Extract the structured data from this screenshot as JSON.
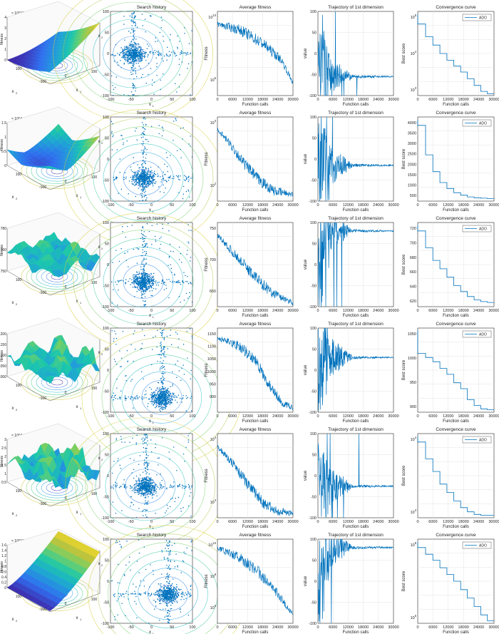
{
  "figure": {
    "column_titles": [
      "",
      "Search history",
      "Average fitness",
      "Trajectory of 1st dimension",
      "Convergence curve"
    ],
    "legend_label": "ADO",
    "line_color": "#0072BD",
    "surface_colors": [
      "#3E26A8",
      "#2F6FF0",
      "#1FA2D6",
      "#1AC7AC",
      "#74CF66",
      "#C6C236",
      "#F9E12B"
    ]
  },
  "chart_data": [
    {
      "function": "F1",
      "surface": {
        "type": "surface",
        "title": "F1",
        "zlabel": "fitness",
        "z_exponent": "× 10^13",
        "zticks": [
          "0",
          "1",
          "2",
          "3",
          "4"
        ],
        "xlabel": "x1",
        "ylabel": "x2",
        "xticks": [
          "-100",
          "0",
          "100"
        ],
        "yticks": [
          "100",
          "0",
          "-100"
        ]
      },
      "search_history": {
        "type": "scatter",
        "title": "Search history",
        "xlabel": "x1",
        "ylabel": "x2",
        "xlim": [
          -100,
          100
        ],
        "ylim": [
          -100,
          100
        ],
        "xticks": [
          "-100",
          "-50",
          "0",
          "50",
          "100"
        ],
        "yticks": [
          "100",
          "50",
          "0",
          "-50",
          "-100"
        ],
        "cluster_center": [
          -45,
          0
        ]
      },
      "average_fitness": {
        "type": "line",
        "title": "Average fitness",
        "xlabel": "Function calls",
        "ylabel": "Fitness",
        "scale": "log",
        "xlim": [
          0,
          30000
        ],
        "xticks": [
          "0",
          "6000",
          "12000",
          "18000",
          "24000",
          "30000"
        ],
        "yticks": [
          "10^10",
          "10^5"
        ],
        "trend": [
          [
            0,
            0.85
          ],
          [
            0.3,
            0.78
          ],
          [
            0.6,
            0.62
          ],
          [
            0.85,
            0.42
          ],
          [
            1,
            0.15
          ]
        ]
      },
      "trajectory": {
        "type": "line",
        "title": "Trajectory of 1st dimension",
        "xlabel": "Function calls",
        "ylabel": "value",
        "xlim": [
          0,
          30000
        ],
        "ylim": [
          -100,
          100
        ],
        "yticks": [
          "100",
          "50",
          "0",
          "-50",
          "-100"
        ],
        "settle_value": -55
      },
      "convergence": {
        "type": "line",
        "title": "Convergence curve",
        "xlabel": "Function calls",
        "ylabel": "Best score",
        "scale": "log",
        "legend": "ADO",
        "xticks": [
          "0",
          "6000",
          "12000",
          "18000",
          "24000",
          "30000"
        ],
        "yticks": [
          "10^5",
          "10^4",
          "10^3"
        ],
        "steps": [
          0.85,
          0.7,
          0.6,
          0.5,
          0.42,
          0.35,
          0.28,
          0.2,
          0.12,
          0.05,
          0.02
        ]
      }
    },
    {
      "function": "F2",
      "surface": {
        "type": "surface",
        "title": "F2",
        "zlabel": "fitness",
        "z_exponent": "× 10^4",
        "zticks": [
          "0",
          "0.5",
          "1",
          "1.5"
        ],
        "xlabel": "x1",
        "ylabel": "x2",
        "xticks": [
          "-100",
          "0",
          "100"
        ],
        "yticks": [
          "100",
          "0",
          "-100"
        ]
      },
      "search_history": {
        "type": "scatter",
        "title": "Search history",
        "xlabel": "x1",
        "ylabel": "x2",
        "xlim": [
          -100,
          100
        ],
        "ylim": [
          -100,
          100
        ],
        "xticks": [
          "-100",
          "-50",
          "0",
          "50",
          "100"
        ],
        "yticks": [
          "100",
          "50",
          "0",
          "-50",
          "-100"
        ],
        "cluster_center": [
          -20,
          -45
        ]
      },
      "average_fitness": {
        "type": "line",
        "title": "Average fitness",
        "xlabel": "Function calls",
        "ylabel": "Fitness",
        "scale": "log",
        "xlim": [
          0,
          30000
        ],
        "xticks": [
          "0",
          "6000",
          "12000",
          "18000",
          "24000",
          "30000"
        ],
        "yticks": [
          "10^3",
          "10^2"
        ],
        "trend": [
          [
            0,
            0.85
          ],
          [
            0.15,
            0.7
          ],
          [
            0.35,
            0.45
          ],
          [
            0.55,
            0.25
          ],
          [
            0.75,
            0.12
          ],
          [
            1,
            0.08
          ]
        ]
      },
      "trajectory": {
        "type": "line",
        "title": "Trajectory of 1st dimension",
        "xlabel": "Function calls",
        "ylabel": "value",
        "xlim": [
          0,
          30000
        ],
        "ylim": [
          -100,
          100
        ],
        "yticks": [
          "100",
          "50",
          "0",
          "-50",
          "-100"
        ],
        "settle_value": -15
      },
      "convergence": {
        "type": "line",
        "title": "Convergence curve",
        "xlabel": "Function calls",
        "ylabel": "Best score",
        "scale": "linear",
        "legend": "ADO",
        "xticks": [
          "0",
          "6000",
          "12000",
          "18000",
          "24000",
          "30000"
        ],
        "yticks": [
          "4000",
          "3500",
          "3000",
          "2500",
          "2000",
          "1500",
          "1000",
          "500"
        ],
        "steps": [
          0.9,
          0.55,
          0.35,
          0.22,
          0.15,
          0.1,
          0.07,
          0.05,
          0.04,
          0.035,
          0.03
        ]
      }
    },
    {
      "function": "F3",
      "surface": {
        "type": "surface",
        "title": "F3",
        "zlabel": "fitness",
        "z_exponent": "",
        "zticks": [
          "750",
          "760",
          "780"
        ],
        "xlabel": "x1",
        "ylabel": "x2",
        "xticks": [
          "-100",
          "0",
          "100"
        ],
        "yticks": [
          "100",
          "0",
          "-100"
        ]
      },
      "search_history": {
        "type": "scatter",
        "title": "Search history",
        "xlabel": "x1",
        "ylabel": "x2",
        "xlim": [
          -100,
          100
        ],
        "ylim": [
          -100,
          100
        ],
        "xticks": [
          "-100",
          "-50",
          "0",
          "50",
          "100"
        ],
        "yticks": [
          "100",
          "50",
          "0",
          "-50",
          "-100"
        ],
        "cluster_center": [
          -20,
          -40
        ]
      },
      "average_fitness": {
        "type": "line",
        "title": "Average fitness",
        "xlabel": "Function calls",
        "ylabel": "Fitness",
        "scale": "linear",
        "xlim": [
          0,
          30000
        ],
        "xticks": [
          "0",
          "6000",
          "12000",
          "18000",
          "24000",
          "30000"
        ],
        "yticks": [
          "750",
          "700",
          "650"
        ],
        "trend": [
          [
            0,
            0.85
          ],
          [
            0.2,
            0.65
          ],
          [
            0.45,
            0.4
          ],
          [
            0.7,
            0.18
          ],
          [
            1,
            0.04
          ]
        ]
      },
      "trajectory": {
        "type": "line",
        "title": "Trajectory of 1st dimension",
        "xlabel": "Function calls",
        "ylabel": "value",
        "xlim": [
          0,
          30000
        ],
        "ylim": [
          -100,
          100
        ],
        "yticks": [
          "100",
          "50",
          "0",
          "-50",
          "-100"
        ],
        "settle_value": 80
      },
      "convergence": {
        "type": "line",
        "title": "Convergence curve",
        "xlabel": "Function calls",
        "ylabel": "Best score",
        "scale": "linear",
        "legend": "ADO",
        "xticks": [
          "0",
          "6000",
          "12000",
          "18000",
          "24000",
          "30000"
        ],
        "yticks": [
          "720",
          "700",
          "680",
          "660",
          "640",
          "620"
        ],
        "steps": [
          0.9,
          0.7,
          0.55,
          0.45,
          0.35,
          0.25,
          0.18,
          0.12,
          0.08,
          0.06,
          0.05
        ]
      }
    },
    {
      "function": "F4",
      "surface": {
        "type": "surface",
        "title": "F4",
        "zlabel": "fitness",
        "z_exponent": "",
        "zticks": [
          "1000",
          "1050",
          "1100",
          "1150",
          "1200"
        ],
        "xlabel": "x1",
        "ylabel": "x2",
        "xticks": [
          "-100",
          "0",
          "100"
        ],
        "yticks": [
          "100",
          "0",
          "-100"
        ]
      },
      "search_history": {
        "type": "scatter",
        "title": "Search history",
        "xlabel": "x1",
        "ylabel": "x2",
        "xlim": [
          -100,
          100
        ],
        "ylim": [
          -100,
          100
        ],
        "xticks": [
          "-100",
          "-50",
          "0",
          "50",
          "100"
        ],
        "yticks": [
          "100",
          "50",
          "0",
          "-50",
          "-100"
        ],
        "cluster_center": [
          25,
          -65
        ]
      },
      "average_fitness": {
        "type": "line",
        "title": "Average fitness",
        "xlabel": "Function calls",
        "ylabel": "Fitness",
        "scale": "linear",
        "xlim": [
          0,
          30000
        ],
        "xticks": [
          "0",
          "6000",
          "12000",
          "18000",
          "24000",
          "30000"
        ],
        "yticks": [
          "1150",
          "1100",
          "1050",
          "1000",
          "950",
          "900"
        ],
        "trend": [
          [
            0,
            0.88
          ],
          [
            0.3,
            0.78
          ],
          [
            0.5,
            0.62
          ],
          [
            0.7,
            0.3
          ],
          [
            0.85,
            0.12
          ],
          [
            1,
            0.05
          ]
        ]
      },
      "trajectory": {
        "type": "line",
        "title": "Trajectory of 1st dimension",
        "xlabel": "Function calls",
        "ylabel": "value",
        "xlim": [
          0,
          30000
        ],
        "ylim": [
          -100,
          100
        ],
        "yticks": [
          "100",
          "50",
          "0",
          "-50",
          "-100"
        ],
        "settle_value": 30
      },
      "convergence": {
        "type": "line",
        "title": "Convergence curve",
        "xlabel": "Function calls",
        "ylabel": "Best score",
        "scale": "linear",
        "legend": "ADO",
        "xticks": [
          "0",
          "6000",
          "12000",
          "18000",
          "24000",
          "30000"
        ],
        "yticks": [
          "1050",
          "1000",
          "950",
          "900"
        ],
        "steps": [
          0.7,
          0.65,
          0.6,
          0.52,
          0.45,
          0.35,
          0.28,
          0.15,
          0.08,
          0.04,
          0.03
        ]
      }
    },
    {
      "function": "F5",
      "surface": {
        "type": "surface",
        "title": "F5",
        "zlabel": "fitness",
        "z_exponent": "× 10^4",
        "zticks": [
          "0.5",
          "1",
          "1.5",
          "2",
          "2.5",
          "3"
        ],
        "xlabel": "x1",
        "ylabel": "x2",
        "xticks": [
          "-100",
          "0",
          "100"
        ],
        "yticks": [
          "100",
          "0",
          "-100"
        ]
      },
      "search_history": {
        "type": "scatter",
        "title": "Search history",
        "xlabel": "x1",
        "ylabel": "x2",
        "xlim": [
          -100,
          100
        ],
        "ylim": [
          -100,
          100
        ],
        "xticks": [
          "-100",
          "-50",
          "0",
          "50",
          "100"
        ],
        "yticks": [
          "100",
          "50",
          "0",
          "-50",
          "-100"
        ],
        "cluster_center": [
          -15,
          -25
        ]
      },
      "average_fitness": {
        "type": "line",
        "title": "Average fitness",
        "xlabel": "Function calls",
        "ylabel": "Fitness",
        "scale": "log",
        "xlim": [
          0,
          30000
        ],
        "xticks": [
          "0",
          "6000",
          "12000",
          "18000",
          "24000",
          "30000"
        ],
        "yticks": [
          "10^4",
          "10^3"
        ],
        "trend": [
          [
            0,
            0.85
          ],
          [
            0.2,
            0.65
          ],
          [
            0.4,
            0.4
          ],
          [
            0.6,
            0.18
          ],
          [
            0.8,
            0.08
          ],
          [
            1,
            0.05
          ]
        ]
      },
      "trajectory": {
        "type": "line",
        "title": "Trajectory of 1st dimension",
        "xlabel": "Function calls",
        "ylabel": "value",
        "xlim": [
          0,
          30000
        ],
        "ylim": [
          -100,
          100
        ],
        "yticks": [
          "100",
          "50",
          "0",
          "-50",
          "-100"
        ],
        "settle_value": -25
      },
      "convergence": {
        "type": "line",
        "title": "Convergence curve",
        "xlabel": "Function calls",
        "ylabel": "Best score",
        "scale": "log",
        "legend": "ADO",
        "xticks": [
          "0",
          "6000",
          "12000",
          "18000",
          "24000",
          "30000"
        ],
        "yticks": [
          "10^4",
          "10^3"
        ],
        "steps": [
          0.9,
          0.7,
          0.55,
          0.4,
          0.3,
          0.2,
          0.12,
          0.07,
          0.04,
          0.03,
          0.03
        ]
      }
    },
    {
      "function": "F6",
      "surface": {
        "type": "surface",
        "title": "F6",
        "zlabel": "fitness",
        "z_exponent": "× 10^13",
        "zticks": [
          "0",
          "0.2",
          "0.4",
          "0.6",
          "0.8",
          "1",
          "1.2",
          "1.4",
          "1.6"
        ],
        "xlabel": "x1",
        "ylabel": "x2",
        "xticks": [
          "-100",
          "0",
          "100"
        ],
        "yticks": [
          "100",
          "0",
          "-100"
        ]
      },
      "search_history": {
        "type": "scatter",
        "title": "Search history",
        "xlabel": "x1",
        "ylabel": "x2",
        "xlim": [
          -100,
          100
        ],
        "ylim": [
          -100,
          100
        ],
        "xticks": [
          "-100",
          "-50",
          "0",
          "50",
          "100"
        ],
        "yticks": [
          "100",
          "50",
          "0",
          "-50",
          "-100"
        ],
        "cluster_center": [
          40,
          -30
        ]
      },
      "average_fitness": {
        "type": "line",
        "title": "Average fitness",
        "xlabel": "Function calls",
        "ylabel": "Fitness",
        "scale": "log",
        "xlim": [
          0,
          30000
        ],
        "xticks": [
          "0",
          "6000",
          "12000",
          "18000",
          "24000",
          "30000"
        ],
        "yticks": [
          "10^10",
          "10^8",
          "10^6"
        ],
        "trend": [
          [
            0,
            0.9
          ],
          [
            0.3,
            0.78
          ],
          [
            0.55,
            0.6
          ],
          [
            0.8,
            0.35
          ],
          [
            1,
            0.1
          ]
        ]
      },
      "trajectory": {
        "type": "line",
        "title": "Trajectory of 1st dimension",
        "xlabel": "Function calls",
        "ylabel": "value",
        "xlim": [
          0,
          30000
        ],
        "ylim": [
          -100,
          100
        ],
        "yticks": [
          "100",
          "50",
          "0",
          "-50",
          "-100"
        ],
        "settle_value": 80
      },
      "convergence": {
        "type": "line",
        "title": "Convergence curve",
        "xlabel": "Function calls",
        "ylabel": "Best score",
        "scale": "log",
        "legend": "ADO",
        "xticks": [
          "0",
          "6000",
          "12000",
          "18000",
          "24000",
          "30000"
        ],
        "yticks": [
          "10^8",
          "10^6"
        ],
        "steps": [
          0.9,
          0.82,
          0.75,
          0.66,
          0.58,
          0.5,
          0.4,
          0.3,
          0.2,
          0.1,
          0.03
        ]
      }
    }
  ]
}
